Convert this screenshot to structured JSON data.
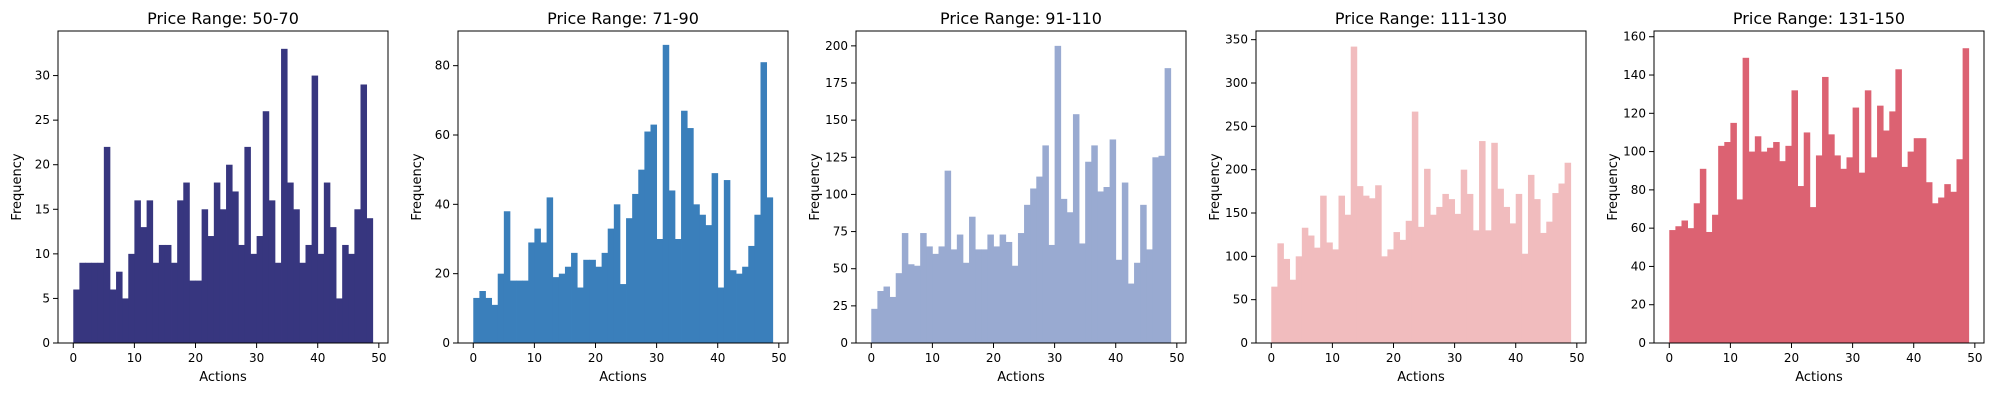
{
  "chart_data": [
    {
      "type": "bar",
      "title": "Price Range: 50-70",
      "xlabel": "Actions",
      "ylabel": "Frequency",
      "color": "#37367f",
      "xlim": [
        -2.5,
        51.5
      ],
      "ylim": [
        0,
        35
      ],
      "xticks": [
        0,
        10,
        20,
        30,
        40,
        50
      ],
      "yticks": [
        0,
        5,
        10,
        15,
        20,
        25,
        30
      ],
      "x": [
        0,
        1,
        2,
        3,
        4,
        5,
        6,
        7,
        8,
        9,
        10,
        11,
        12,
        13,
        14,
        15,
        16,
        17,
        18,
        19,
        20,
        21,
        22,
        23,
        24,
        25,
        26,
        27,
        28,
        29,
        30,
        31,
        32,
        33,
        34,
        35,
        36,
        37,
        38,
        39,
        40,
        41,
        42,
        43,
        44,
        45,
        46,
        47,
        48
      ],
      "values": [
        6,
        9,
        9,
        9,
        9,
        22,
        6,
        8,
        5,
        10,
        16,
        13,
        16,
        9,
        11,
        11,
        9,
        16,
        18,
        7,
        7,
        15,
        12,
        18,
        15,
        20,
        17,
        11,
        22,
        10,
        12,
        26,
        16,
        9,
        33,
        18,
        15,
        9,
        11,
        30,
        10,
        18,
        13,
        5,
        11,
        10,
        15,
        29,
        14
      ]
    },
    {
      "type": "bar",
      "title": "Price Range: 71-90",
      "xlabel": "Actions",
      "ylabel": "Frequency",
      "color": "#3a7fbb",
      "xlim": [
        -2.5,
        51.5
      ],
      "ylim": [
        0,
        90
      ],
      "xticks": [
        0,
        10,
        20,
        30,
        40,
        50
      ],
      "yticks": [
        0,
        20,
        40,
        60,
        80
      ],
      "x": [
        0,
        1,
        2,
        3,
        4,
        5,
        6,
        7,
        8,
        9,
        10,
        11,
        12,
        13,
        14,
        15,
        16,
        17,
        18,
        19,
        20,
        21,
        22,
        23,
        24,
        25,
        26,
        27,
        28,
        29,
        30,
        31,
        32,
        33,
        34,
        35,
        36,
        37,
        38,
        39,
        40,
        41,
        42,
        43,
        44,
        45,
        46,
        47,
        48
      ],
      "values": [
        13,
        15,
        13,
        11,
        20,
        38,
        18,
        18,
        18,
        29,
        33,
        29,
        42,
        19,
        20,
        22,
        26,
        16,
        24,
        24,
        22,
        26,
        33,
        40,
        17,
        36,
        43,
        50,
        61,
        63,
        30,
        86,
        44,
        30,
        67,
        62,
        40,
        37,
        34,
        49,
        16,
        47,
        21,
        20,
        22,
        28,
        37,
        81,
        42
      ]
    },
    {
      "type": "bar",
      "title": "Price Range: 91-110",
      "xlabel": "Actions",
      "ylabel": "Frequency",
      "color": "#99aad1",
      "xlim": [
        -2.5,
        51.5
      ],
      "ylim": [
        0,
        210
      ],
      "xticks": [
        0,
        10,
        20,
        30,
        40,
        50
      ],
      "yticks": [
        0,
        25,
        50,
        75,
        100,
        125,
        150,
        175,
        200
      ],
      "x": [
        0,
        1,
        2,
        3,
        4,
        5,
        6,
        7,
        8,
        9,
        10,
        11,
        12,
        13,
        14,
        15,
        16,
        17,
        18,
        19,
        20,
        21,
        22,
        23,
        24,
        25,
        26,
        27,
        28,
        29,
        30,
        31,
        32,
        33,
        34,
        35,
        36,
        37,
        38,
        39,
        40,
        41,
        42,
        43,
        44,
        45,
        46,
        47,
        48
      ],
      "values": [
        23,
        35,
        38,
        31,
        47,
        74,
        53,
        52,
        74,
        65,
        60,
        65,
        116,
        63,
        73,
        54,
        85,
        63,
        63,
        73,
        65,
        73,
        68,
        52,
        74,
        93,
        104,
        112,
        133,
        66,
        200,
        97,
        88,
        154,
        67,
        122,
        133,
        102,
        105,
        137,
        56,
        108,
        40,
        54,
        93,
        63,
        125,
        126,
        185
      ]
    },
    {
      "type": "bar",
      "title": "Price Range: 111-130",
      "xlabel": "Actions",
      "ylabel": "Frequency",
      "color": "#f1bcbe",
      "xlim": [
        -2.5,
        51.5
      ],
      "ylim": [
        0,
        360
      ],
      "xticks": [
        0,
        10,
        20,
        30,
        40,
        50
      ],
      "yticks": [
        0,
        50,
        100,
        150,
        200,
        250,
        300,
        350
      ],
      "x": [
        0,
        1,
        2,
        3,
        4,
        5,
        6,
        7,
        8,
        9,
        10,
        11,
        12,
        13,
        14,
        15,
        16,
        17,
        18,
        19,
        20,
        21,
        22,
        23,
        24,
        25,
        26,
        27,
        28,
        29,
        30,
        31,
        32,
        33,
        34,
        35,
        36,
        37,
        38,
        39,
        40,
        41,
        42,
        43,
        44,
        45,
        46,
        47,
        48
      ],
      "values": [
        65,
        115,
        97,
        73,
        100,
        133,
        124,
        110,
        170,
        116,
        108,
        170,
        148,
        342,
        181,
        170,
        167,
        182,
        100,
        108,
        128,
        119,
        141,
        267,
        134,
        201,
        148,
        157,
        172,
        166,
        149,
        200,
        172,
        130,
        233,
        130,
        231,
        178,
        157,
        138,
        172,
        103,
        194,
        166,
        127,
        140,
        173,
        184,
        208
      ]
    },
    {
      "type": "bar",
      "title": "Price Range: 131-150",
      "xlabel": "Actions",
      "ylabel": "Frequency",
      "color": "#dc6272",
      "xlim": [
        -2.5,
        51.5
      ],
      "ylim": [
        0,
        163
      ],
      "xticks": [
        0,
        10,
        20,
        30,
        40,
        50
      ],
      "yticks": [
        0,
        20,
        40,
        60,
        80,
        100,
        120,
        140,
        160
      ],
      "x": [
        0,
        1,
        2,
        3,
        4,
        5,
        6,
        7,
        8,
        9,
        10,
        11,
        12,
        13,
        14,
        15,
        16,
        17,
        18,
        19,
        20,
        21,
        22,
        23,
        24,
        25,
        26,
        27,
        28,
        29,
        30,
        31,
        32,
        33,
        34,
        35,
        36,
        37,
        38,
        39,
        40,
        41,
        42,
        43,
        44,
        45,
        46,
        47,
        48
      ],
      "values": [
        59,
        61,
        64,
        60,
        73,
        91,
        58,
        67,
        103,
        105,
        115,
        75,
        149,
        100,
        108,
        100,
        102,
        105,
        95,
        103,
        132,
        82,
        110,
        71,
        98,
        139,
        109,
        98,
        91,
        97,
        123,
        89,
        132,
        97,
        124,
        111,
        121,
        143,
        92,
        100,
        107,
        107,
        84,
        73,
        76,
        83,
        79,
        96,
        154
      ]
    }
  ]
}
